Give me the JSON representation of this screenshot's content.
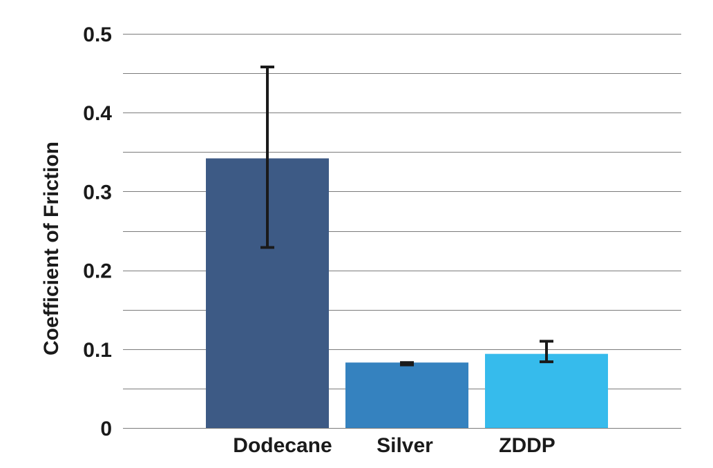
{
  "chart_data": {
    "type": "bar",
    "title": "",
    "xlabel": "",
    "ylabel": "Coefficient of Friction",
    "ylim": [
      0,
      0.5
    ],
    "yticks": [
      "0",
      "0.1",
      "0.2",
      "0.3",
      "0.4",
      "0.5"
    ],
    "ytick_values": [
      0,
      0.1,
      0.2,
      0.3,
      0.4,
      0.5
    ],
    "gridlines": [
      0.05,
      0.1,
      0.15,
      0.2,
      0.25,
      0.3,
      0.35,
      0.4,
      0.45,
      0.5
    ],
    "grid": true,
    "categories": [
      "Dodecane",
      "Silver",
      "ZDDP"
    ],
    "values": [
      0.342,
      0.083,
      0.094
    ],
    "error_low": [
      0.229,
      0.08,
      0.084
    ],
    "error_high": [
      0.458,
      0.083,
      0.11
    ],
    "colors": [
      "#3d5a85",
      "#3582bf",
      "#36bbec"
    ]
  }
}
